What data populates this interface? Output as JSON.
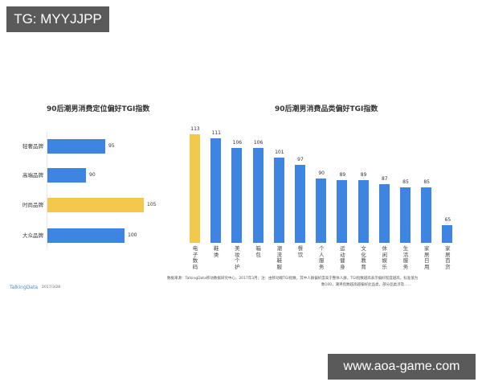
{
  "watermarks": {
    "top_left": "TG: MYYJJPP",
    "bottom_right": "www.aoa-game.com"
  },
  "colors": {
    "blue": "#3d85e0",
    "yellow": "#f2c94c",
    "badge_bg": "#5a5a5a"
  },
  "footer": {
    "brand": "TalkingData",
    "date": "2017/3/28",
    "source_line1": "数据来源：TalkingData移动数据研究中心，2017年3月；注：由移动端TGI指数，其中人群偏好度高于整体人群，TGI指数越高表示偏好程度越高，标准值为",
    "source_line2": "数100，潮男指数越高越偏好此品类，部分品类涉及……"
  },
  "chart_data": [
    {
      "type": "bar",
      "orientation": "horizontal",
      "title": "90后潮男消费定位偏好TGI指数",
      "categories": [
        "轻奢品牌",
        "高端品牌",
        "时尚品牌",
        "大众品牌"
      ],
      "values": [
        95,
        90,
        105,
        100
      ],
      "highlight": [
        false,
        false,
        true,
        false
      ],
      "xlabel": "",
      "ylabel": "",
      "grid": false,
      "legend": "none"
    },
    {
      "type": "bar",
      "orientation": "vertical",
      "title": "90后潮男消费品类偏好TGI指数",
      "categories": [
        "电子数码",
        "鞋类",
        "美妆个护",
        "箱包",
        "潮流鞋服",
        "餐饮",
        "个人服务",
        "运动健身",
        "文化教育",
        "休闲娱乐",
        "生活服务",
        "家居日用",
        "家居百货"
      ],
      "values": [
        113,
        111,
        106,
        106,
        101,
        97,
        90,
        89,
        89,
        87,
        85,
        85,
        65
      ],
      "highlight": [
        true,
        false,
        false,
        false,
        false,
        false,
        false,
        false,
        false,
        false,
        false,
        false,
        false
      ],
      "xlabel": "",
      "ylabel": "",
      "grid": false,
      "legend": "none"
    }
  ]
}
